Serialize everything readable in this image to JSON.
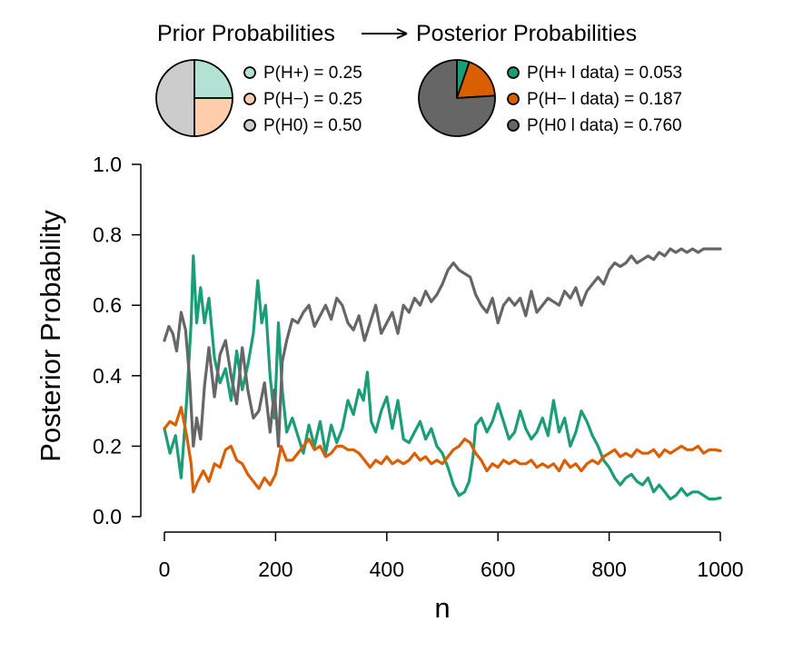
{
  "chart_data": {
    "type": "line",
    "xlabel": "n",
    "ylabel": "Posterior Probability",
    "xlim": [
      0,
      1000
    ],
    "ylim": [
      0,
      1
    ],
    "x_ticks": [
      "0",
      "200",
      "400",
      "600",
      "800",
      "1000"
    ],
    "y_ticks": [
      "0.0",
      "0.2",
      "0.4",
      "0.6",
      "0.8",
      "1.0"
    ],
    "grid": false,
    "inset": {
      "prior_title": "Prior Probabilities",
      "posterior_title": "Posterior Probabilities",
      "prior": [
        {
          "label": "P(H+) = 0.25",
          "value": 0.25,
          "color": "#b3e2d5"
        },
        {
          "label": "P(H−) = 0.25",
          "value": 0.25,
          "color": "#fdcdac"
        },
        {
          "label": "P(H0) = 0.50",
          "value": 0.5,
          "color": "#cccccc"
        }
      ],
      "posterior": [
        {
          "label": "P(H+ l data) = 0.053",
          "value": 0.053,
          "color": "#1b9e77"
        },
        {
          "label": "P(H− l data) = 0.187",
          "value": 0.187,
          "color": "#d95f02"
        },
        {
          "label": "P(H0 l data) = 0.760",
          "value": 0.76,
          "color": "#666666"
        }
      ]
    },
    "series": [
      {
        "color": "#1b9e77",
        "x": [
          0,
          10,
          20,
          30,
          40,
          48,
          52,
          58,
          65,
          72,
          80,
          90,
          100,
          110,
          120,
          130,
          140,
          150,
          160,
          168,
          175,
          182,
          190,
          198,
          205,
          212,
          220,
          230,
          240,
          250,
          260,
          270,
          280,
          290,
          300,
          310,
          320,
          330,
          340,
          350,
          358,
          365,
          372,
          380,
          390,
          400,
          410,
          420,
          430,
          440,
          450,
          460,
          470,
          480,
          490,
          500,
          510,
          520,
          530,
          540,
          548,
          555,
          560,
          570,
          580,
          590,
          600,
          610,
          620,
          630,
          640,
          650,
          660,
          670,
          680,
          690,
          700,
          710,
          720,
          730,
          740,
          750,
          760,
          770,
          780,
          790,
          800,
          810,
          820,
          830,
          840,
          850,
          860,
          870,
          880,
          890,
          900,
          910,
          920,
          930,
          940,
          950,
          960,
          970,
          980,
          990,
          1000
        ],
        "y": [
          0.25,
          0.18,
          0.23,
          0.11,
          0.33,
          0.55,
          0.74,
          0.55,
          0.65,
          0.55,
          0.62,
          0.45,
          0.38,
          0.42,
          0.33,
          0.47,
          0.36,
          0.43,
          0.52,
          0.67,
          0.55,
          0.6,
          0.4,
          0.28,
          0.55,
          0.36,
          0.24,
          0.28,
          0.23,
          0.18,
          0.26,
          0.2,
          0.27,
          0.18,
          0.26,
          0.21,
          0.25,
          0.33,
          0.29,
          0.36,
          0.33,
          0.41,
          0.27,
          0.24,
          0.3,
          0.34,
          0.25,
          0.33,
          0.22,
          0.21,
          0.24,
          0.27,
          0.22,
          0.25,
          0.2,
          0.18,
          0.14,
          0.09,
          0.06,
          0.07,
          0.1,
          0.17,
          0.26,
          0.28,
          0.24,
          0.27,
          0.32,
          0.27,
          0.22,
          0.24,
          0.3,
          0.25,
          0.22,
          0.24,
          0.28,
          0.23,
          0.33,
          0.24,
          0.28,
          0.2,
          0.24,
          0.3,
          0.27,
          0.23,
          0.2,
          0.16,
          0.14,
          0.11,
          0.09,
          0.11,
          0.12,
          0.1,
          0.09,
          0.11,
          0.07,
          0.09,
          0.07,
          0.05,
          0.06,
          0.08,
          0.06,
          0.07,
          0.07,
          0.06,
          0.05,
          0.05,
          0.053
        ]
      },
      {
        "color": "#d95f02",
        "x": [
          0,
          10,
          20,
          30,
          40,
          48,
          52,
          60,
          70,
          80,
          90,
          100,
          110,
          120,
          130,
          140,
          150,
          160,
          170,
          180,
          190,
          200,
          210,
          220,
          230,
          240,
          250,
          260,
          270,
          280,
          290,
          300,
          310,
          320,
          330,
          340,
          350,
          360,
          370,
          380,
          390,
          400,
          410,
          420,
          430,
          440,
          450,
          460,
          470,
          480,
          490,
          500,
          510,
          520,
          530,
          540,
          550,
          560,
          570,
          580,
          590,
          600,
          610,
          620,
          630,
          640,
          650,
          660,
          670,
          680,
          690,
          700,
          710,
          720,
          730,
          740,
          750,
          760,
          770,
          780,
          790,
          800,
          810,
          820,
          830,
          840,
          850,
          860,
          870,
          880,
          890,
          900,
          910,
          920,
          930,
          940,
          950,
          960,
          970,
          980,
          990,
          1000
        ],
        "y": [
          0.25,
          0.27,
          0.26,
          0.31,
          0.23,
          0.15,
          0.07,
          0.1,
          0.13,
          0.1,
          0.15,
          0.14,
          0.19,
          0.2,
          0.16,
          0.15,
          0.12,
          0.1,
          0.08,
          0.11,
          0.09,
          0.12,
          0.2,
          0.16,
          0.16,
          0.18,
          0.2,
          0.22,
          0.19,
          0.2,
          0.17,
          0.18,
          0.2,
          0.2,
          0.19,
          0.19,
          0.18,
          0.16,
          0.14,
          0.16,
          0.15,
          0.17,
          0.15,
          0.16,
          0.15,
          0.16,
          0.18,
          0.16,
          0.17,
          0.15,
          0.16,
          0.15,
          0.17,
          0.19,
          0.2,
          0.22,
          0.21,
          0.18,
          0.16,
          0.13,
          0.15,
          0.14,
          0.16,
          0.15,
          0.16,
          0.15,
          0.15,
          0.16,
          0.14,
          0.15,
          0.14,
          0.15,
          0.13,
          0.16,
          0.14,
          0.15,
          0.13,
          0.15,
          0.16,
          0.15,
          0.17,
          0.18,
          0.19,
          0.17,
          0.18,
          0.17,
          0.19,
          0.18,
          0.18,
          0.19,
          0.17,
          0.19,
          0.18,
          0.19,
          0.2,
          0.19,
          0.19,
          0.2,
          0.18,
          0.19,
          0.19,
          0.187
        ]
      },
      {
        "color": "#666666",
        "x": [
          0,
          8,
          15,
          22,
          30,
          38,
          45,
          52,
          58,
          65,
          72,
          80,
          90,
          100,
          110,
          120,
          130,
          140,
          150,
          160,
          170,
          180,
          190,
          198,
          205,
          212,
          220,
          230,
          240,
          250,
          260,
          270,
          280,
          290,
          300,
          310,
          320,
          330,
          340,
          350,
          360,
          370,
          380,
          390,
          400,
          410,
          420,
          430,
          440,
          450,
          460,
          470,
          480,
          490,
          500,
          510,
          520,
          530,
          540,
          550,
          560,
          570,
          580,
          590,
          600,
          610,
          620,
          630,
          640,
          650,
          660,
          670,
          680,
          690,
          700,
          710,
          720,
          730,
          740,
          750,
          760,
          770,
          780,
          790,
          800,
          810,
          820,
          830,
          840,
          850,
          860,
          870,
          880,
          890,
          900,
          910,
          920,
          930,
          940,
          950,
          960,
          970,
          980,
          990,
          1000
        ],
        "y": [
          0.5,
          0.54,
          0.52,
          0.47,
          0.58,
          0.53,
          0.4,
          0.2,
          0.28,
          0.22,
          0.37,
          0.48,
          0.34,
          0.46,
          0.5,
          0.4,
          0.32,
          0.48,
          0.36,
          0.28,
          0.3,
          0.38,
          0.24,
          0.36,
          0.2,
          0.44,
          0.5,
          0.56,
          0.55,
          0.58,
          0.6,
          0.54,
          0.57,
          0.6,
          0.56,
          0.62,
          0.6,
          0.55,
          0.53,
          0.57,
          0.5,
          0.55,
          0.6,
          0.52,
          0.55,
          0.58,
          0.52,
          0.6,
          0.58,
          0.62,
          0.6,
          0.64,
          0.61,
          0.63,
          0.66,
          0.7,
          0.72,
          0.7,
          0.69,
          0.68,
          0.63,
          0.6,
          0.58,
          0.62,
          0.55,
          0.6,
          0.62,
          0.6,
          0.62,
          0.57,
          0.64,
          0.58,
          0.6,
          0.62,
          0.61,
          0.6,
          0.64,
          0.62,
          0.65,
          0.6,
          0.64,
          0.66,
          0.68,
          0.66,
          0.7,
          0.72,
          0.71,
          0.72,
          0.74,
          0.72,
          0.73,
          0.74,
          0.73,
          0.75,
          0.74,
          0.76,
          0.75,
          0.76,
          0.75,
          0.76,
          0.75,
          0.76,
          0.76,
          0.76,
          0.76
        ]
      }
    ]
  }
}
